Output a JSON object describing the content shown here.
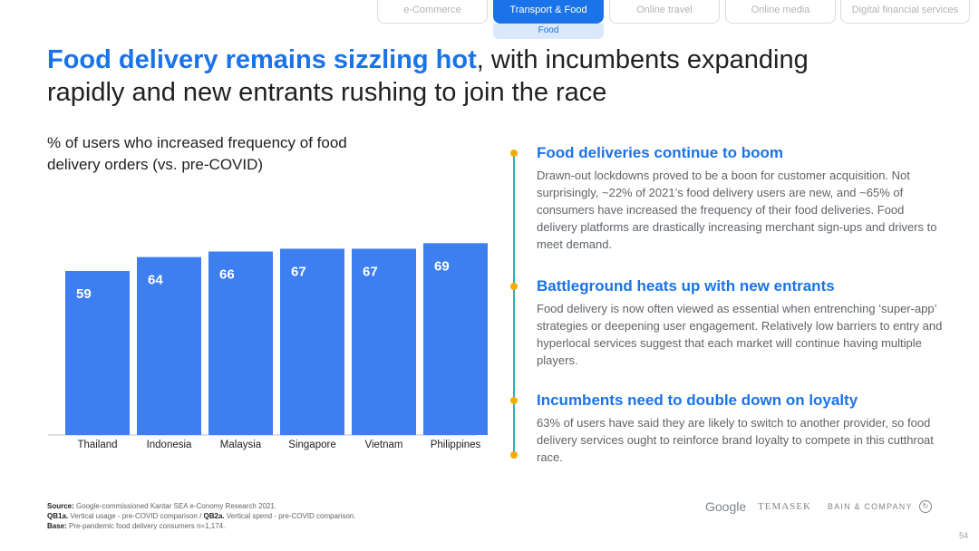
{
  "tabs": [
    {
      "label": "e-Commerce",
      "active": false
    },
    {
      "label": "Transport & Food",
      "active": true
    },
    {
      "label": "Online travel",
      "active": false
    },
    {
      "label": "Online media",
      "active": false
    },
    {
      "label": "Digital financial services",
      "active": false
    }
  ],
  "subtab": "Food",
  "title": {
    "highlight": "Food delivery remains sizzling hot",
    "rest": ", with incumbents expanding rapidly and new entrants rushing to join the race"
  },
  "chart_caption": "% of users who increased frequency of food delivery orders (vs. pre-COVID)",
  "chart_data": {
    "type": "bar",
    "categories": [
      "Thailand",
      "Indonesia",
      "Malaysia",
      "Singapore",
      "Vietnam",
      "Philippines"
    ],
    "values": [
      59,
      64,
      66,
      67,
      67,
      69
    ],
    "data_labels": [
      "59",
      "64",
      "66",
      "67",
      "67",
      "69"
    ],
    "bar_color": "#3d7ff0",
    "title": "",
    "ylabel": "",
    "xlabel": ""
  },
  "sections": [
    {
      "heading": "Food deliveries continue to boom",
      "body": "Drawn-out lockdowns proved to be a boon for customer acquisition. Not surprisingly, ~22% of 2021’s food delivery users are new, and ~65% of consumers have increased the frequency of their food deliveries. Food delivery platforms are drastically increasing merchant sign-ups and drivers to meet demand."
    },
    {
      "heading": "Battleground heats up with new entrants",
      "body": "Food delivery is now often viewed as essential when entrenching ‘super-app’ strategies or deepening user engagement. Relatively low barriers to entry and hyperlocal services suggest that each market will continue having multiple players."
    },
    {
      "heading": "Incumbents need to double down on loyalty",
      "body": "63% of users have said they are likely to switch to another provider, so food delivery services ought to reinforce brand loyalty to compete in this cutthroat race."
    }
  ],
  "footnote": {
    "source_label": "Source:",
    "source_text": " Google-commissioned Kantar SEA e-Conomy Research 2021.",
    "q1_label": "QB1a.",
    "q1_text": " Vertical usage - pre-COVID comparison / ",
    "q2_label": "QB2a.",
    "q2_text": " Vertical spend - pre-COVID comparison.",
    "base_label": "Base:",
    "base_text": " Pre-pandemic food delivery consumers n=1,174."
  },
  "logos": {
    "google": "Google",
    "temasek": "TEMASEK",
    "bain": "BAIN & COMPANY"
  },
  "page_number": "54",
  "colors": {
    "accent": "#1a73e8",
    "timeline": "#2bb5b5",
    "dot": "#f9ab00"
  }
}
